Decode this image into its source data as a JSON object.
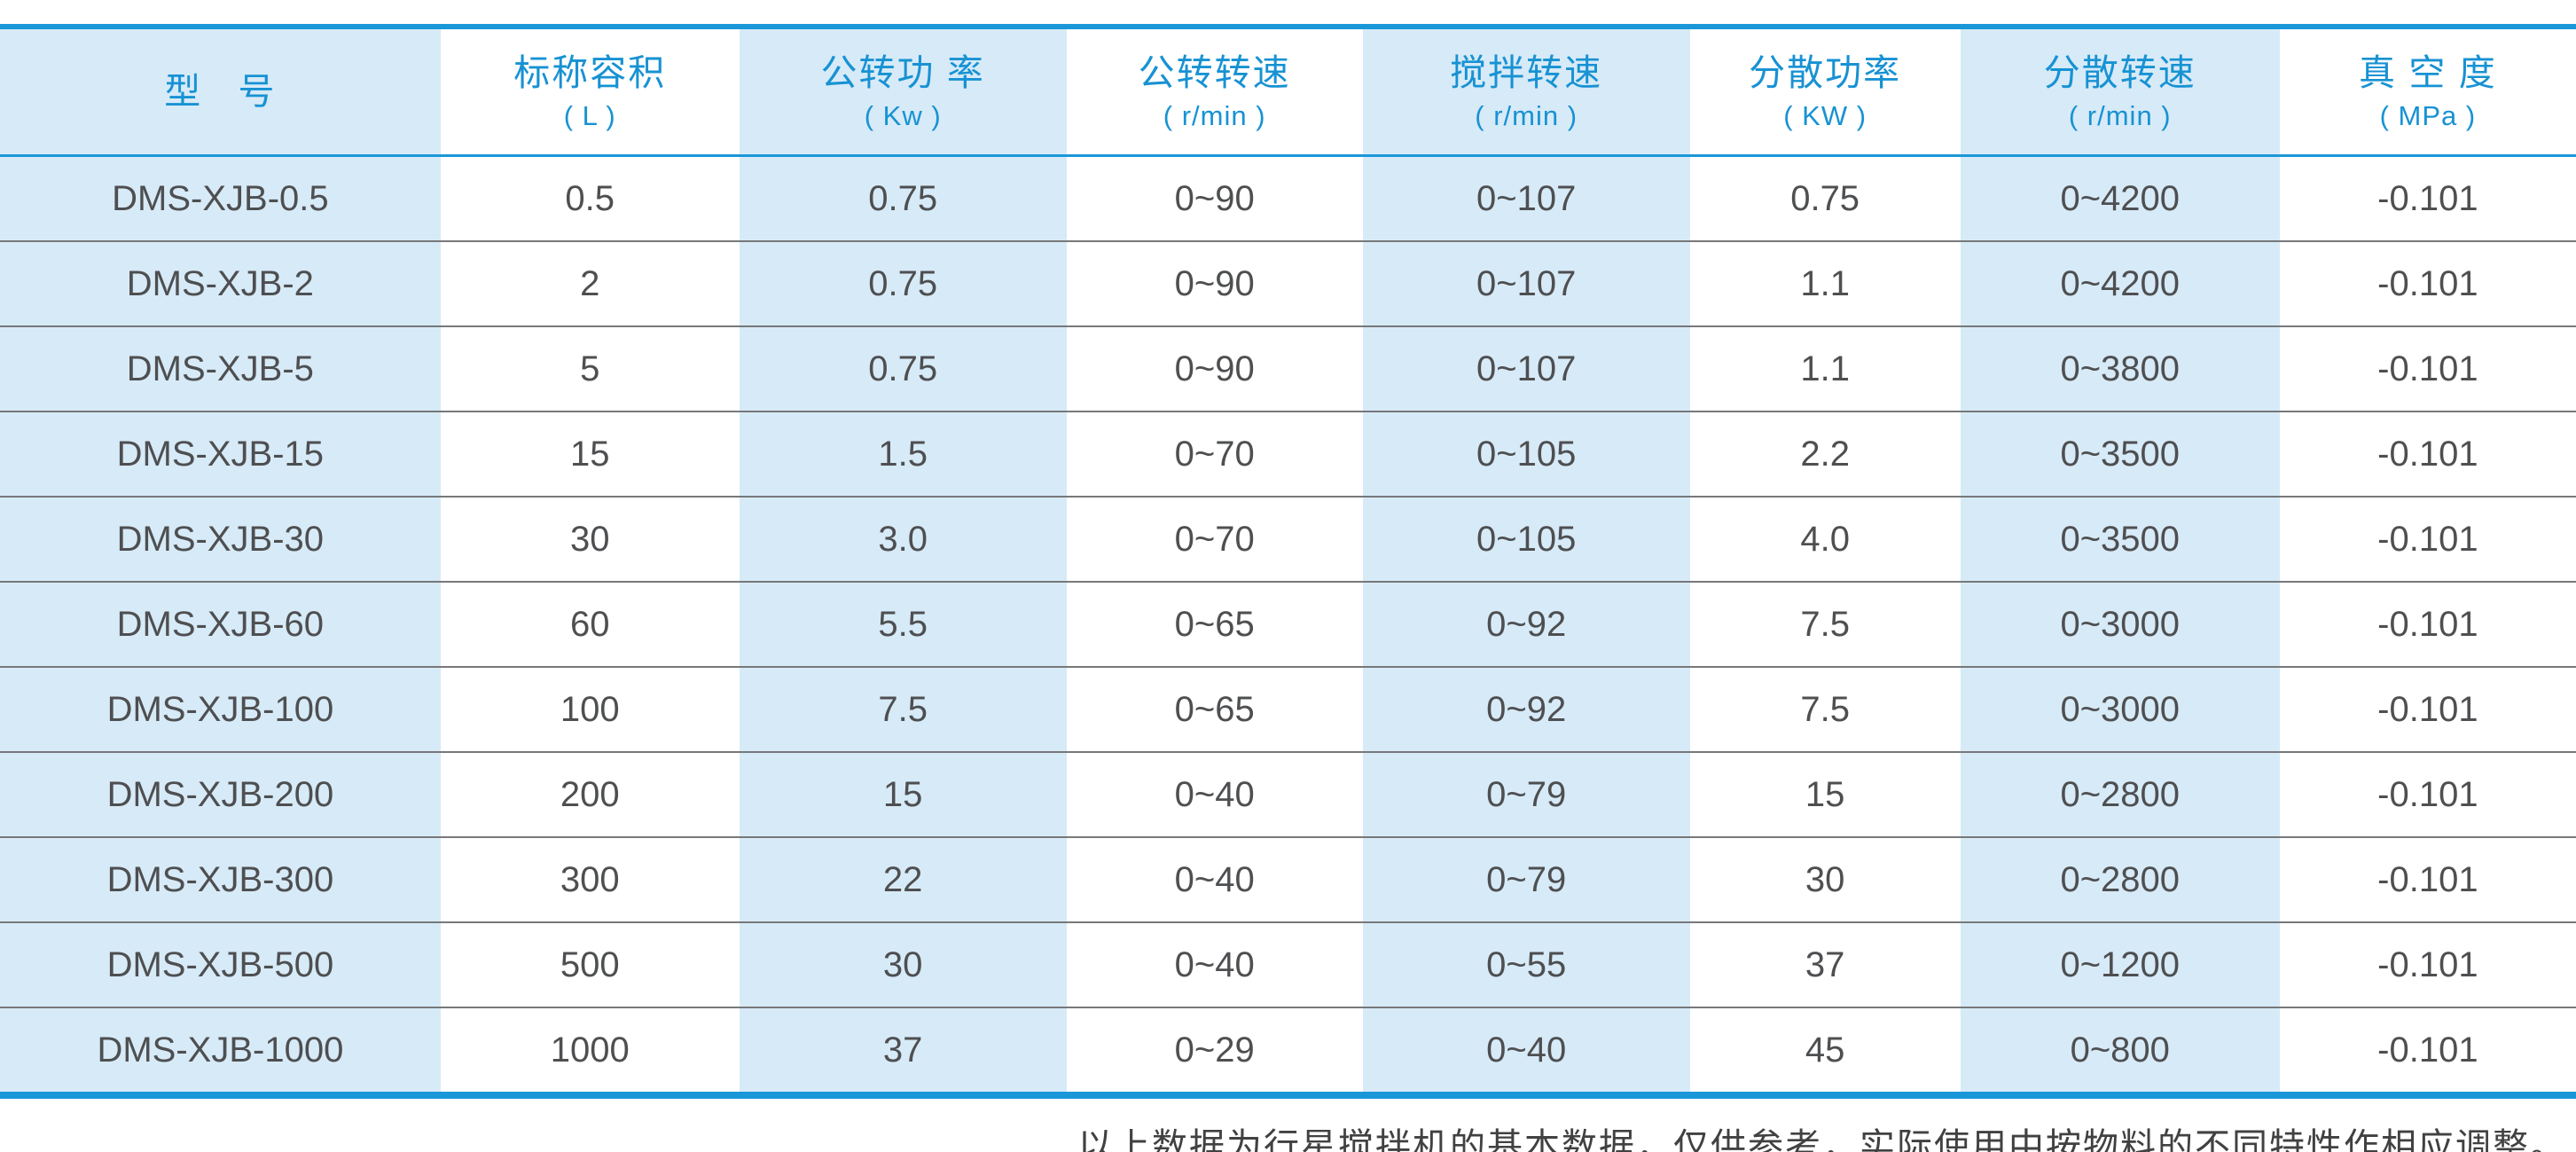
{
  "colors": {
    "accent_blue": "#1a97d8",
    "header_text_blue": "#1792d3",
    "stripe_light_blue": "#d7eaf7",
    "row_separator_gray": "#77787a",
    "data_text_gray": "#4e4f51",
    "footer_text_gray": "#414141",
    "page_background": "#ffffff"
  },
  "table": {
    "columns": [
      {
        "id": "model",
        "label": "型   号",
        "unit": "",
        "striped": true,
        "width_pct": 17.1
      },
      {
        "id": "nominal-capacity",
        "label": "标称容积",
        "unit": "( L )",
        "striped": false,
        "width_pct": 11.6
      },
      {
        "id": "revolution-power",
        "label": "公转功 率",
        "unit": "( Kw )",
        "striped": true,
        "width_pct": 12.7
      },
      {
        "id": "revolution-speed",
        "label": "公转转速",
        "unit": "( r/min )",
        "striped": false,
        "width_pct": 11.5
      },
      {
        "id": "stirring-speed",
        "label": "搅拌转速",
        "unit": "( r/min )",
        "striped": true,
        "width_pct": 12.7
      },
      {
        "id": "dispersion-power",
        "label": "分散功率",
        "unit": "( KW )",
        "striped": false,
        "width_pct": 10.5
      },
      {
        "id": "dispersion-speed",
        "label": "分散转速",
        "unit": "( r/min )",
        "striped": true,
        "width_pct": 12.4
      },
      {
        "id": "vacuum-degree",
        "label": "真 空 度",
        "unit": "( MPa )",
        "striped": false,
        "width_pct": 11.5
      }
    ],
    "rows": [
      [
        "DMS-XJB-0.5",
        "0.5",
        "0.75",
        "0~90",
        "0~107",
        "0.75",
        "0~4200",
        "-0.101"
      ],
      [
        "DMS-XJB-2",
        "2",
        "0.75",
        "0~90",
        "0~107",
        "1.1",
        "0~4200",
        "-0.101"
      ],
      [
        "DMS-XJB-5",
        "5",
        "0.75",
        "0~90",
        "0~107",
        "1.1",
        "0~3800",
        "-0.101"
      ],
      [
        "DMS-XJB-15",
        "15",
        "1.5",
        "0~70",
        "0~105",
        "2.2",
        "0~3500",
        "-0.101"
      ],
      [
        "DMS-XJB-30",
        "30",
        "3.0",
        "0~70",
        "0~105",
        "4.0",
        "0~3500",
        "-0.101"
      ],
      [
        "DMS-XJB-60",
        "60",
        "5.5",
        "0~65",
        "0~92",
        "7.5",
        "0~3000",
        "-0.101"
      ],
      [
        "DMS-XJB-100",
        "100",
        "7.5",
        "0~65",
        "0~92",
        "7.5",
        "0~3000",
        "-0.101"
      ],
      [
        "DMS-XJB-200",
        "200",
        "15",
        "0~40",
        "0~79",
        "15",
        "0~2800",
        "-0.101"
      ],
      [
        "DMS-XJB-300",
        "300",
        "22",
        "0~40",
        "0~79",
        "30",
        "0~2800",
        "-0.101"
      ],
      [
        "DMS-XJB-500",
        "500",
        "30",
        "0~40",
        "0~55",
        "37",
        "0~1200",
        "-0.101"
      ],
      [
        "DMS-XJB-1000",
        "1000",
        "37",
        "0~29",
        "0~40",
        "45",
        "0~800",
        "-0.101"
      ]
    ]
  },
  "footer": {
    "note": "以上数据为行星搅拌机的基本数据，仅供参考，实际使用中按物料的不同特性作相应调整。"
  }
}
